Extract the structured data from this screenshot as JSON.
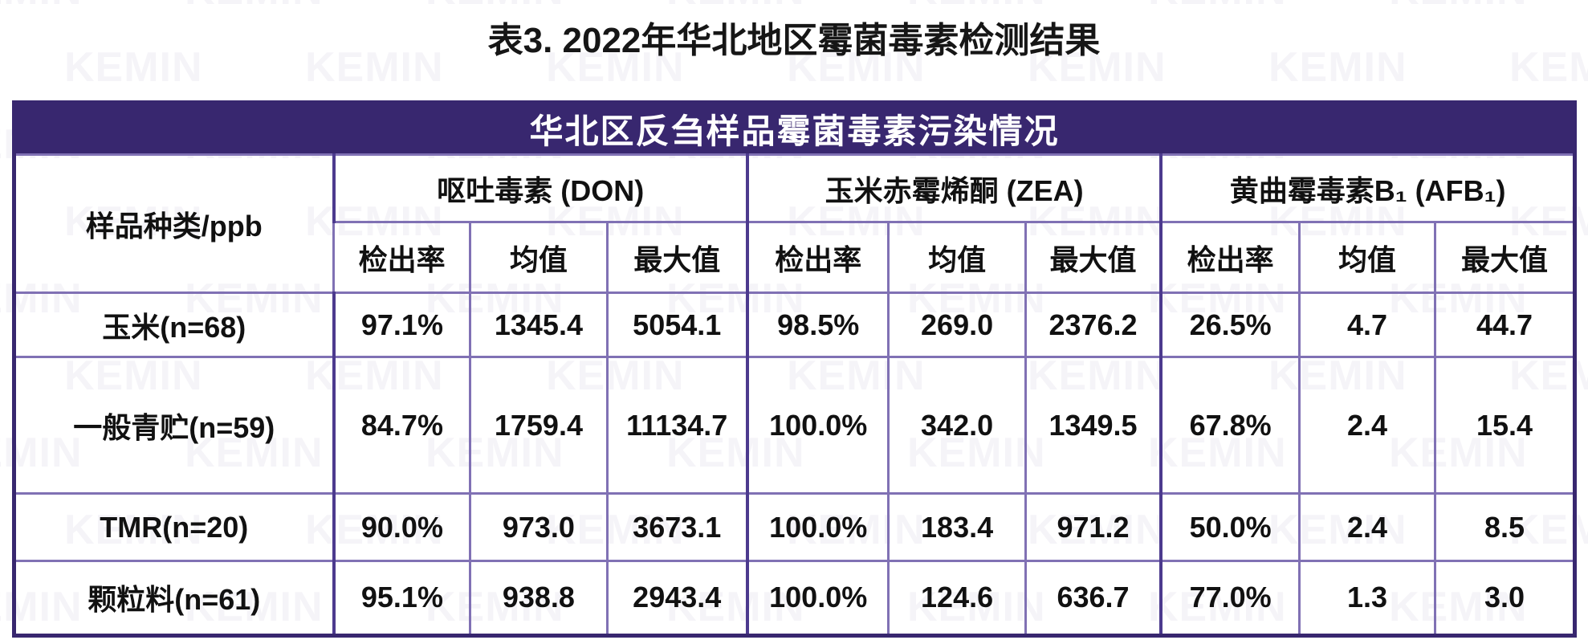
{
  "page_title": "表3. 2022年华北地区霉菌毒素检测结果",
  "watermark": "KEMIN",
  "colors": {
    "header_bar": "#38276f",
    "border_inner": "#8071b4",
    "border_group": "#4c3a8e"
  },
  "table": {
    "title": "华北区反刍样品霉菌毒素污染情况",
    "corner_header": "样品种类/ppb",
    "groups": [
      {
        "label": "呕吐毒素 (DON)"
      },
      {
        "label": "玉米赤霉烯酮 (ZEA)"
      },
      {
        "label": "黄曲霉毒素B₁ (AFB₁)"
      }
    ],
    "sub_headers": [
      "检出率",
      "均值",
      "最大值"
    ],
    "rows": [
      {
        "label": "玉米(n=68)",
        "values": [
          "97.1%",
          "1345.4",
          "5054.1",
          "98.5%",
          "269.0",
          "2376.2",
          "26.5%",
          "4.7",
          "44.7"
        ]
      },
      {
        "label": "一般青贮(n=59)",
        "values": [
          "84.7%",
          "1759.4",
          "11134.7",
          "100.0%",
          "342.0",
          "1349.5",
          "67.8%",
          "2.4",
          "15.4"
        ]
      },
      {
        "label": "TMR(n=20)",
        "values": [
          "90.0%",
          "973.0",
          "3673.1",
          "100.0%",
          "183.4",
          "971.2",
          "50.0%",
          "2.4",
          "8.5"
        ]
      },
      {
        "label": "颗粒料(n=61)",
        "values": [
          "95.1%",
          "938.8",
          "2943.4",
          "100.0%",
          "124.6",
          "636.7",
          "77.0%",
          "1.3",
          "3.0"
        ]
      }
    ]
  }
}
